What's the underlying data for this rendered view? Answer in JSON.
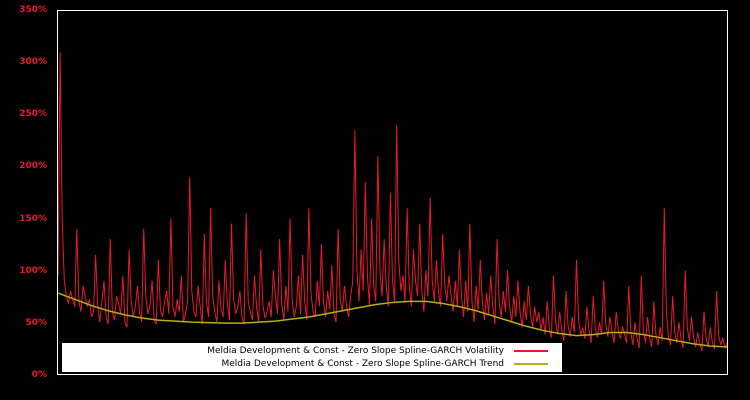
{
  "colors": {
    "background": "#000000",
    "plot_border": "#ffffff",
    "axis_label": "#e8192c",
    "legend_background": "#ffffff",
    "legend_text": "#000000"
  },
  "chart_data": {
    "type": "line",
    "title": "",
    "xlabel": "",
    "ylabel": "",
    "ylim": [
      0,
      350
    ],
    "grid": false,
    "legend_position": "bottom-inside",
    "yticks_top_to_bottom": [
      "350%",
      "300%",
      "250%",
      "200%",
      "150%",
      "100%",
      "50%",
      "0%"
    ],
    "series": [
      {
        "name": "Meldia Development & Const - Zero Slope Spline-GARCH Volatility",
        "color": "#e8192c",
        "stroke_width": 1,
        "values": [
          95,
          310,
          150,
          90,
          75,
          68,
          80,
          72,
          65,
          140,
          70,
          60,
          85,
          75,
          65,
          72,
          55,
          60,
          115,
          65,
          50,
          70,
          90,
          55,
          48,
          130,
          60,
          52,
          75,
          68,
          58,
          95,
          50,
          45,
          120,
          70,
          55,
          65,
          85,
          60,
          50,
          140,
          75,
          58,
          66,
          90,
          52,
          48,
          110,
          62,
          55,
          70,
          80,
          58,
          150,
          65,
          55,
          72,
          60,
          95,
          50,
          58,
          70,
          190,
          80,
          60,
          55,
          85,
          65,
          48,
          135,
          70,
          55,
          160,
          75,
          60,
          50,
          90,
          62,
          55,
          110,
          68,
          52,
          145,
          72,
          58,
          65,
          80,
          55,
          48,
          155,
          70,
          60,
          52,
          95,
          64,
          50,
          120,
          66,
          54,
          60,
          70,
          55,
          100,
          75,
          58,
          130,
          68,
          52,
          85,
          60,
          150,
          72,
          55,
          65,
          95,
          58,
          115,
          70,
          52,
          160,
          78,
          60,
          55,
          90,
          65,
          125,
          70,
          55,
          80,
          62,
          105,
          58,
          50,
          140,
          72,
          60,
          85,
          65,
          55,
          75,
          90,
          235,
          100,
          70,
          120,
          80,
          185,
          95,
          65,
          150,
          85,
          70,
          210,
          100,
          75,
          130,
          85,
          65,
          175,
          90,
          70,
          240,
          110,
          80,
          95,
          70,
          160,
          85,
          65,
          120,
          90,
          75,
          145,
          80,
          60,
          100,
          75,
          170,
          90,
          70,
          110,
          80,
          65,
          135,
          85,
          70,
          95,
          75,
          60,
          90,
          65,
          120,
          75,
          55,
          90,
          60,
          145,
          70,
          50,
          85,
          62,
          110,
          68,
          52,
          78,
          58,
          95,
          64,
          48,
          130,
          70,
          55,
          80,
          60,
          100,
          65,
          50,
          75,
          55,
          90,
          60,
          45,
          70,
          52,
          85,
          58,
          44,
          65,
          50,
          60,
          42,
          55,
          38,
          70,
          45,
          35,
          95,
          50,
          38,
          60,
          42,
          32,
          80,
          46,
          36,
          55,
          40,
          110,
          52,
          38,
          45,
          34,
          65,
          42,
          30,
          75,
          44,
          35,
          50,
          38,
          90,
          48,
          36,
          55,
          40,
          30,
          60,
          42,
          34,
          46,
          38,
          30,
          85,
          40,
          28,
          50,
          34,
          25,
          95,
          42,
          30,
          55,
          35,
          26,
          70,
          38,
          28,
          45,
          32,
          160,
          60,
          35,
          28,
          75,
          40,
          30,
          50,
          34,
          25,
          100,
          45,
          32,
          55,
          36,
          26,
          40,
          30,
          22,
          60,
          35,
          26,
          45,
          30,
          24,
          80,
          38,
          28,
          35,
          25,
          30
        ]
      },
      {
        "name": "Meldia Development & Const - Zero Slope Spline-GARCH Trend",
        "color": "#b2b118",
        "stroke_width": 1.5,
        "values": [
          78,
          72,
          66,
          61,
          57,
          54,
          52,
          51,
          50,
          49.5,
          49,
          49,
          50,
          51,
          53,
          55,
          58,
          61,
          64,
          67,
          69,
          70,
          70,
          68,
          65,
          61,
          56,
          51,
          46,
          42,
          39,
          37,
          38,
          40,
          40,
          38,
          35,
          32,
          29,
          27,
          26
        ]
      }
    ]
  }
}
